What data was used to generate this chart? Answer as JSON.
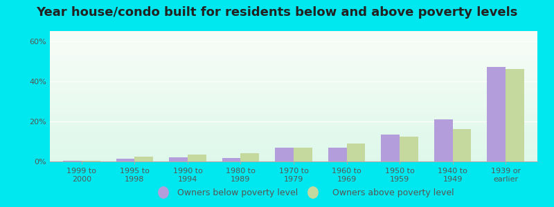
{
  "title": "Year house/condo built for residents below and above poverty levels",
  "categories": [
    "1999 to\n2000",
    "1995 to\n1998",
    "1990 to\n1994",
    "1980 to\n1989",
    "1970 to\n1979",
    "1960 to\n1969",
    "1950 to\n1959",
    "1940 to\n1949",
    "1939 or\nearlier"
  ],
  "below_poverty": [
    0.5,
    1.5,
    2.0,
    1.8,
    7.0,
    7.0,
    13.5,
    21.0,
    47.0
  ],
  "above_poverty": [
    0.3,
    2.5,
    3.5,
    4.0,
    7.0,
    9.0,
    12.5,
    16.0,
    46.0
  ],
  "color_below": "#b39ddb",
  "color_above": "#c5d89d",
  "ylim": [
    0,
    65
  ],
  "yticks": [
    0,
    20,
    40,
    60
  ],
  "ytick_labels": [
    "0%",
    "20%",
    "40%",
    "60%"
  ],
  "legend_below": "Owners below poverty level",
  "legend_above": "Owners above poverty level",
  "background_outer": "#00e8ef",
  "title_fontsize": 13,
  "tick_fontsize": 8,
  "legend_fontsize": 9,
  "bar_width": 0.35
}
